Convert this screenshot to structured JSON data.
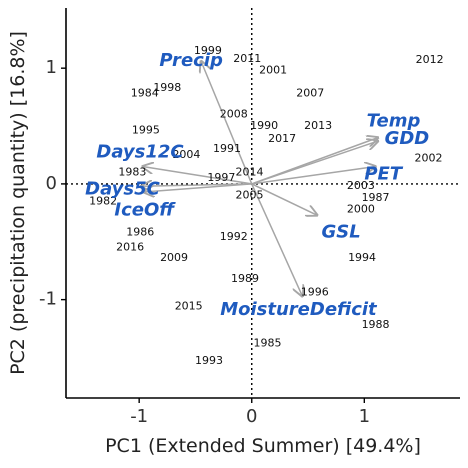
{
  "chart_data": {
    "type": "scatter",
    "subtype": "biplot",
    "xlabel": "PC1 (Extended Summer) [49.4%]",
    "ylabel": "PC2 (precipitation quantity) [16.8%]",
    "xlim": [
      -1.65,
      1.85
    ],
    "ylim": [
      -1.85,
      1.52
    ],
    "xticks": [
      -1,
      0,
      1
    ],
    "yticks": [
      -1,
      0,
      1
    ],
    "xtick_labels": [
      "-1",
      "0",
      "1"
    ],
    "ytick_labels": [
      "-1",
      "0",
      "1"
    ],
    "grid": false,
    "reference_lines": {
      "x": 0,
      "y": 0,
      "style": "dotted"
    },
    "colors": {
      "vector": "#a6a6a6",
      "vector_label": "#1f5bbf",
      "points": "#111111"
    },
    "points": [
      {
        "label": "2012",
        "x": 1.58,
        "y": 1.07
      },
      {
        "label": "1999",
        "x": -0.39,
        "y": 1.15
      },
      {
        "label": "2011",
        "x": -0.04,
        "y": 1.08
      },
      {
        "label": "2001",
        "x": 0.19,
        "y": 0.98
      },
      {
        "label": "1998",
        "x": -0.75,
        "y": 0.83
      },
      {
        "label": "1984",
        "x": -0.95,
        "y": 0.78
      },
      {
        "label": "2007",
        "x": 0.52,
        "y": 0.78
      },
      {
        "label": "2008",
        "x": -0.16,
        "y": 0.6
      },
      {
        "label": "1990",
        "x": 0.11,
        "y": 0.5
      },
      {
        "label": "2013",
        "x": 0.59,
        "y": 0.5
      },
      {
        "label": "1995",
        "x": -0.94,
        "y": 0.46
      },
      {
        "label": "2017",
        "x": 0.27,
        "y": 0.39
      },
      {
        "label": "1991",
        "x": -0.22,
        "y": 0.3
      },
      {
        "label": "2004",
        "x": -0.58,
        "y": 0.25
      },
      {
        "label": "2002",
        "x": 1.57,
        "y": 0.22
      },
      {
        "label": "2014",
        "x": -0.02,
        "y": 0.1
      },
      {
        "label": "1983",
        "x": -1.06,
        "y": 0.1
      },
      {
        "label": "1997",
        "x": -0.27,
        "y": 0.05
      },
      {
        "label": "2003",
        "x": 0.97,
        "y": -0.02
      },
      {
        "label": "2005",
        "x": -0.02,
        "y": -0.1
      },
      {
        "label": "1987",
        "x": 1.1,
        "y": -0.12
      },
      {
        "label": "1982",
        "x": -1.32,
        "y": -0.15
      },
      {
        "label": "2000",
        "x": 0.97,
        "y": -0.22
      },
      {
        "label": "1986",
        "x": -0.99,
        "y": -0.42
      },
      {
        "label": "1992",
        "x": -0.16,
        "y": -0.46
      },
      {
        "label": "2016",
        "x": -1.08,
        "y": -0.55
      },
      {
        "label": "2009",
        "x": -0.69,
        "y": -0.64
      },
      {
        "label": "1994",
        "x": 0.98,
        "y": -0.64
      },
      {
        "label": "1989",
        "x": -0.06,
        "y": -0.82
      },
      {
        "label": "1996",
        "x": 0.56,
        "y": -0.94
      },
      {
        "label": "2015",
        "x": -0.56,
        "y": -1.06
      },
      {
        "label": "1988",
        "x": 1.1,
        "y": -1.22
      },
      {
        "label": "1985",
        "x": 0.14,
        "y": -1.38
      },
      {
        "label": "1993",
        "x": -0.38,
        "y": -1.53
      }
    ],
    "vectors": [
      {
        "name": "Precip",
        "x": -0.45,
        "y": 1.06,
        "label_x": -0.82,
        "label_y": 1.06
      },
      {
        "name": "Temp",
        "x": 1.12,
        "y": 0.37,
        "label_x": 1.02,
        "label_y": 0.54
      },
      {
        "name": "GDD",
        "x": 1.12,
        "y": 0.4,
        "label_x": 1.18,
        "label_y": 0.39
      },
      {
        "name": "PET",
        "x": 1.1,
        "y": 0.15,
        "label_x": 1.0,
        "label_y": 0.08
      },
      {
        "name": "Days12C",
        "x": -0.97,
        "y": 0.15,
        "label_x": -1.38,
        "label_y": 0.27
      },
      {
        "name": "Days5C",
        "x": -0.98,
        "y": -0.02,
        "label_x": -1.48,
        "label_y": -0.05
      },
      {
        "name": "IceOff",
        "x": -0.96,
        "y": -0.07,
        "label_x": -1.22,
        "label_y": -0.23
      },
      {
        "name": "GSL",
        "x": 0.58,
        "y": -0.27,
        "label_x": 0.62,
        "label_y": -0.42
      },
      {
        "name": "MoistureDeficit",
        "x": 0.45,
        "y": -0.97,
        "label_x": -0.28,
        "label_y": -1.09
      }
    ]
  }
}
